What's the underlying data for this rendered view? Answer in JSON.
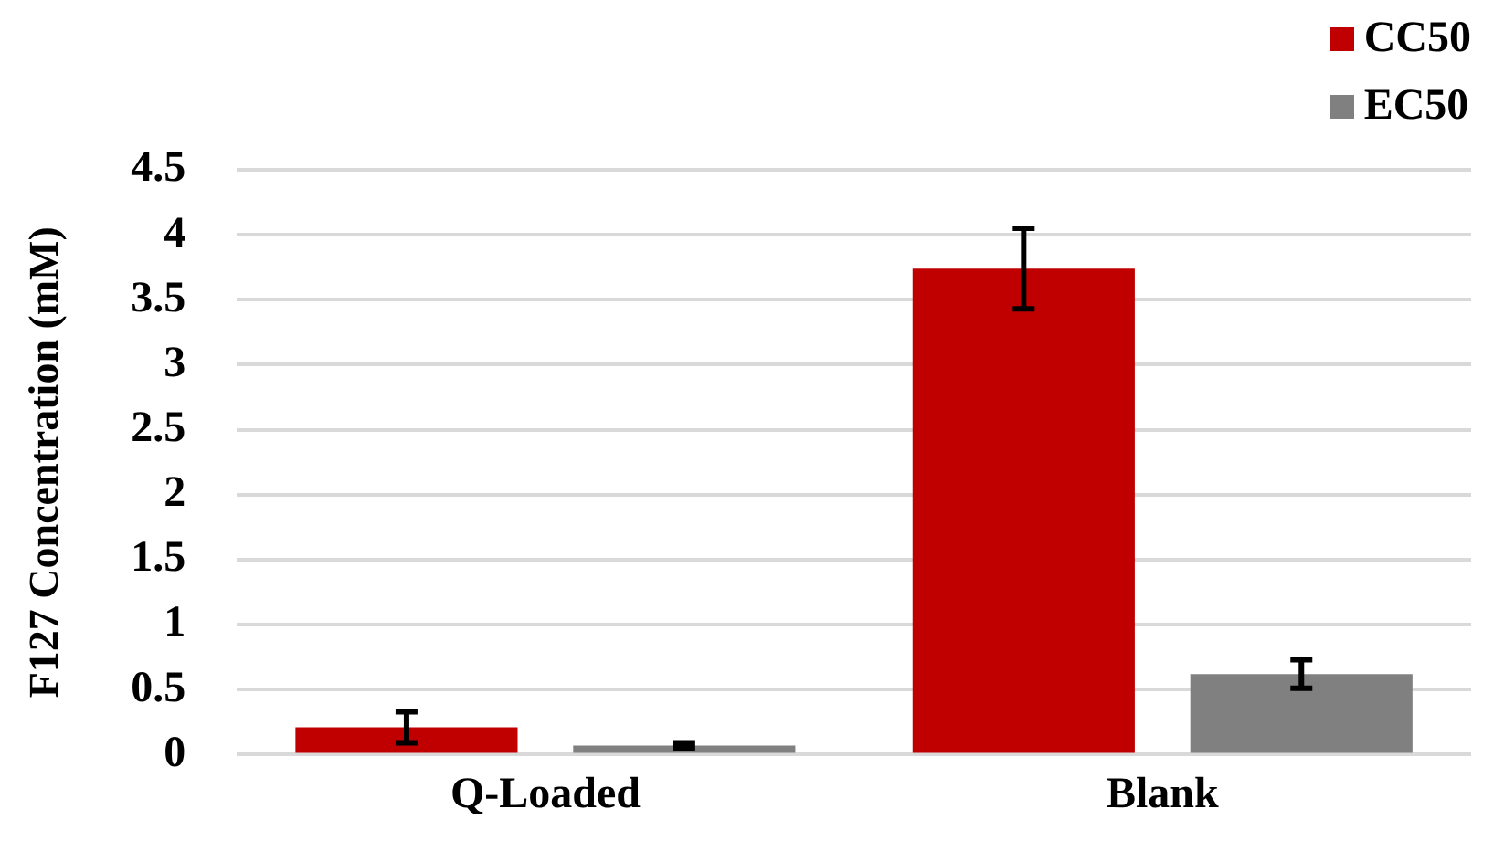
{
  "chart_data": {
    "type": "bar",
    "ylabel": "F127 Concentration (mM)",
    "categories": [
      "Q-Loaded",
      "Blank"
    ],
    "series": [
      {
        "name": "CC50",
        "color": "#c00000",
        "values": [
          0.21,
          3.74
        ],
        "errors": [
          0.12,
          0.31
        ]
      },
      {
        "name": "EC50",
        "color": "#808080",
        "values": [
          0.07,
          0.62
        ],
        "errors": [
          0.02,
          0.11
        ]
      }
    ],
    "ylim": [
      0,
      4.5
    ],
    "yticks": [
      0,
      0.5,
      1,
      1.5,
      2,
      2.5,
      3,
      3.5,
      4,
      4.5
    ],
    "grid": "y",
    "legend": "top right"
  }
}
